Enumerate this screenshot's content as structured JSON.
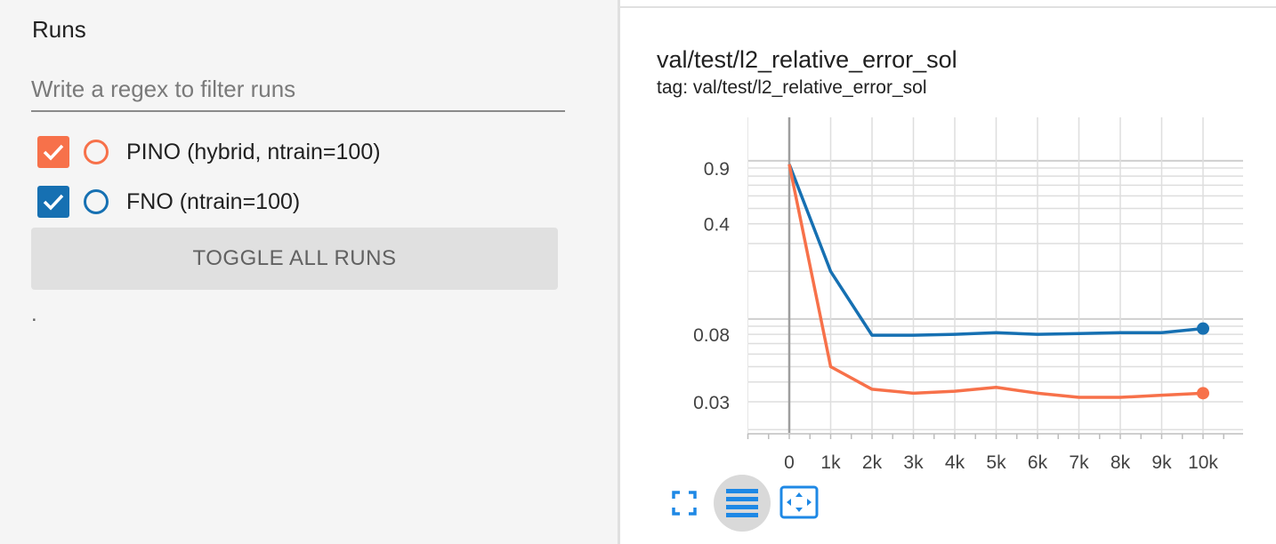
{
  "sidebar": {
    "title": "Runs",
    "filter": {
      "placeholder": "Write a regex to filter runs",
      "value": ""
    },
    "runs": [
      {
        "label": "PINO (hybrid, ntrain=100)",
        "color": "#f7714a",
        "checked": true
      },
      {
        "label": "FNO (ntrain=100)",
        "color": "#1670b2",
        "checked": true
      }
    ],
    "toggle_label": "TOGGLE ALL RUNS",
    "footer_text": "."
  },
  "card": {
    "title": "val/test/l2_relative_error_sol",
    "tag": "tag: val/test/l2_relative_error_sol",
    "icons": [
      "fullscreen-icon",
      "log-scale-icon",
      "fit-domain-icon"
    ]
  },
  "chart_data": {
    "type": "line",
    "x_axis": {
      "ticks": [
        "0",
        "1k",
        "2k",
        "3k",
        "4k",
        "5k",
        "6k",
        "7k",
        "8k",
        "9k",
        "10k"
      ],
      "range": [
        -1000,
        11000
      ]
    },
    "y_axis": {
      "scale": "log",
      "tick_labels": [
        "0.9",
        "0.4",
        "0.08",
        "0.03"
      ],
      "tick_values": [
        0.9,
        0.4,
        0.08,
        0.03
      ]
    },
    "grid": true,
    "series": [
      {
        "name": "FNO (ntrain=100)",
        "color": "#1670b2",
        "x": [
          0,
          1000,
          2000,
          3000,
          4000,
          5000,
          6000,
          7000,
          8000,
          9000,
          10000
        ],
        "y": [
          0.95,
          0.2,
          0.079,
          0.079,
          0.08,
          0.082,
          0.08,
          0.081,
          0.082,
          0.082,
          0.087
        ]
      },
      {
        "name": "PINO (hybrid, ntrain=100)",
        "color": "#f7714a",
        "x": [
          0,
          1000,
          2000,
          3000,
          4000,
          5000,
          6000,
          7000,
          8000,
          9000,
          10000
        ],
        "y": [
          0.95,
          0.05,
          0.036,
          0.034,
          0.035,
          0.037,
          0.034,
          0.032,
          0.032,
          0.033,
          0.034
        ]
      }
    ]
  }
}
